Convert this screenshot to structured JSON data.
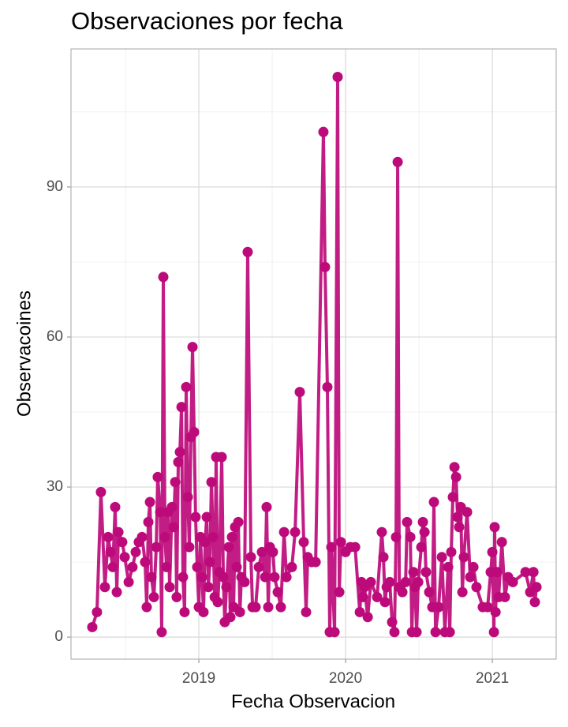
{
  "chart_data": {
    "type": "line",
    "title": "Observaciones por fecha",
    "xlabel": "Fecha Observacion",
    "ylabel": "Observacoines",
    "color": "#bd0a7a",
    "markers": true,
    "grid": true,
    "xlim": [
      2018.129,
      2021.435
    ],
    "ylim": [
      -4.4,
      117.6
    ],
    "xticks": [
      2019,
      2020,
      2021
    ],
    "yticks": [
      0,
      30,
      60,
      90
    ],
    "minor_xticks": [
      2018.5,
      2019.5,
      2020.5
    ],
    "minor_yticks": [
      15,
      45,
      75,
      105
    ],
    "x": [
      2018.274,
      2018.306,
      2018.333,
      2018.36,
      2018.382,
      2018.398,
      2018.414,
      2018.43,
      2018.441,
      2018.452,
      2018.478,
      2018.495,
      2018.522,
      2018.548,
      2018.57,
      2018.591,
      2018.613,
      2018.634,
      2018.645,
      2018.656,
      2018.667,
      2018.677,
      2018.694,
      2018.71,
      2018.72,
      2018.737,
      2018.747,
      2018.758,
      2018.769,
      2018.78,
      2018.79,
      2018.801,
      2018.817,
      2018.828,
      2018.839,
      2018.849,
      2018.86,
      2018.871,
      2018.882,
      2018.892,
      2018.903,
      2018.914,
      2018.925,
      2018.935,
      2018.946,
      2018.957,
      2018.968,
      2018.978,
      2018.989,
      2019.0,
      2019.011,
      2019.022,
      2019.032,
      2019.043,
      2019.054,
      2019.065,
      2019.075,
      2019.086,
      2019.097,
      2019.108,
      2019.118,
      2019.129,
      2019.14,
      2019.156,
      2019.167,
      2019.177,
      2019.188,
      2019.204,
      2019.215,
      2019.226,
      2019.237,
      2019.247,
      2019.258,
      2019.269,
      2019.28,
      2019.29,
      2019.312,
      2019.333,
      2019.355,
      2019.366,
      2019.387,
      2019.409,
      2019.43,
      2019.452,
      2019.462,
      2019.473,
      2019.484,
      2019.505,
      2019.516,
      2019.538,
      2019.559,
      2019.581,
      2019.597,
      2019.634,
      2019.656,
      2019.688,
      2019.715,
      2019.731,
      2019.742,
      2019.769,
      2019.796,
      2019.849,
      2019.86,
      2019.876,
      2019.892,
      2019.903,
      2019.925,
      2019.946,
      2019.957,
      2019.968,
      2020.0,
      2020.032,
      2020.065,
      2020.097,
      2020.108,
      2020.118,
      2020.129,
      2020.151,
      2020.172,
      2020.215,
      2020.247,
      2020.258,
      2020.269,
      2020.28,
      2020.301,
      2020.317,
      2020.333,
      2020.344,
      2020.355,
      2020.366,
      2020.387,
      2020.409,
      2020.419,
      2020.441,
      2020.452,
      2020.462,
      2020.473,
      2020.484,
      2020.495,
      2020.516,
      2020.527,
      2020.538,
      2020.548,
      2020.57,
      2020.591,
      2020.602,
      2020.613,
      2020.634,
      2020.656,
      2020.677,
      2020.699,
      2020.71,
      2020.72,
      2020.731,
      2020.742,
      2020.753,
      2020.763,
      2020.774,
      2020.785,
      2020.796,
      2020.806,
      2020.828,
      2020.849,
      2020.871,
      2020.892,
      2020.935,
      2020.968,
      2020.989,
      2021.0,
      2021.011,
      2021.016,
      2021.022,
      2021.032,
      2021.043,
      2021.065,
      2021.086,
      2021.108,
      2021.14,
      2021.226,
      2021.258,
      2021.28,
      2021.29,
      2021.301
    ],
    "values": [
      2,
      5,
      29,
      10,
      20,
      17,
      14,
      26,
      9,
      21,
      19,
      16,
      11,
      14,
      17,
      19,
      20,
      15,
      6,
      23,
      27,
      12,
      8,
      18,
      32,
      25,
      1,
      72,
      20,
      14,
      25,
      10,
      26,
      22,
      31,
      8,
      35,
      37,
      46,
      12,
      5,
      50,
      28,
      18,
      40,
      58,
      41,
      24,
      14,
      6,
      20,
      12,
      5,
      19,
      24,
      10,
      15,
      31,
      20,
      8,
      36,
      7,
      13,
      36,
      12,
      3,
      10,
      18,
      4,
      20,
      6,
      22,
      14,
      23,
      5,
      12,
      11,
      77,
      16,
      6,
      6,
      14,
      17,
      12,
      26,
      6,
      18,
      17,
      12,
      9,
      6,
      21,
      12,
      14,
      21,
      49,
      19,
      5,
      16,
      15,
      15,
      101,
      74,
      50,
      1,
      18,
      1,
      112,
      9,
      19,
      17,
      18,
      18,
      5,
      11,
      8,
      10,
      4,
      11,
      8,
      21,
      16,
      7,
      10,
      11,
      3,
      1,
      20,
      95,
      10,
      9,
      11,
      23,
      20,
      1,
      13,
      10,
      1,
      11,
      18,
      23,
      21,
      13,
      9,
      6,
      27,
      1,
      6,
      16,
      1,
      14,
      1,
      17,
      28,
      34,
      32,
      24,
      22,
      26,
      9,
      16,
      25,
      12,
      14,
      10,
      6,
      6,
      13,
      17,
      1,
      22,
      5,
      13,
      8,
      19,
      8,
      12,
      11,
      13,
      9,
      13,
      7,
      10
    ]
  }
}
